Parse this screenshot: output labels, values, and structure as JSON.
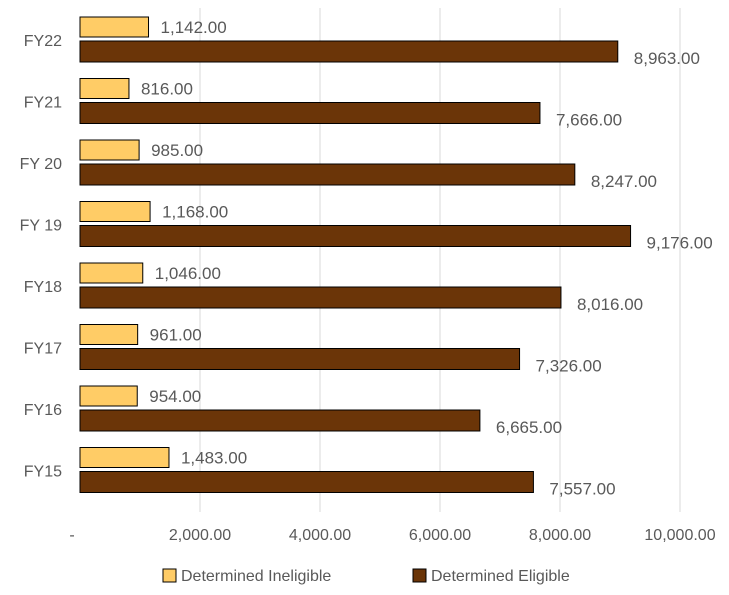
{
  "chart_data": {
    "type": "bar",
    "orientation": "horizontal",
    "categories": [
      "FY22",
      "FY21",
      "FY 20",
      "FY 19",
      "FY18",
      "FY17",
      "FY16",
      "FY15"
    ],
    "series": [
      {
        "name": "Determined Ineligible",
        "values": [
          1142,
          816,
          985,
          1168,
          1046,
          961,
          954,
          1483
        ],
        "labels": [
          "1,142.00",
          "816.00",
          "985.00",
          "1,168.00",
          "1,046.00",
          "961.00",
          "954.00",
          "1,483.00"
        ],
        "color": "#ffcc66"
      },
      {
        "name": "Determined Eligible",
        "values": [
          8963,
          7666,
          8247,
          9176,
          8016,
          7326,
          6665,
          7557
        ],
        "labels": [
          "8,963.00",
          "7,666.00",
          "8,247.00",
          "9,176.00",
          "8,016.00",
          "7,326.00",
          "6,665.00",
          "7,557.00"
        ],
        "color": "#6b3508"
      }
    ],
    "x_ticks": [
      0,
      2000,
      4000,
      6000,
      8000,
      10000
    ],
    "x_tick_labels": [
      "-",
      "2,000.00",
      "4,000.00",
      "6,000.00",
      "8,000.00",
      "10,000.00"
    ],
    "xlim": [
      0,
      10000
    ],
    "grid": true,
    "legend_position": "bottom"
  }
}
